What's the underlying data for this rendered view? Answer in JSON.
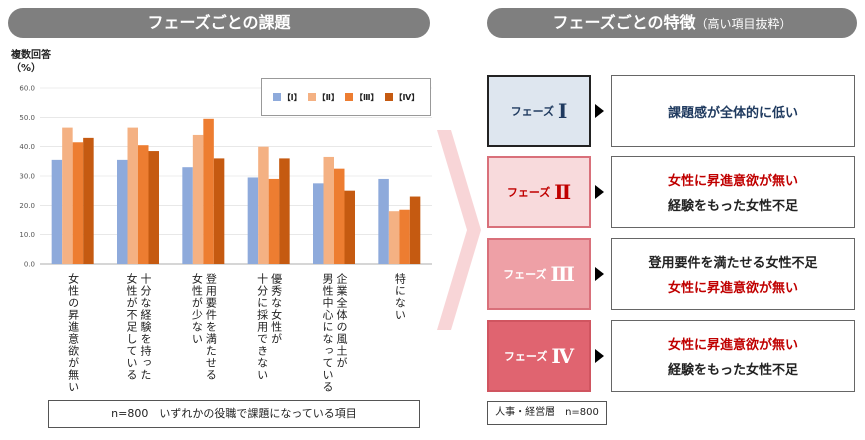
{
  "left_header": "フェーズごとの課題",
  "right_header": {
    "main": "フェーズごとの特徴",
    "sub": "（高い項目抜粋）"
  },
  "chart_data": {
    "type": "bar",
    "ylabel_line1": "複数回答",
    "ylabel_line2": "（%）",
    "ylim": [
      0,
      60
    ],
    "y_ticks": [
      "0.0",
      "10.0",
      "20.0",
      "30.0",
      "40.0",
      "50.0",
      "60.0"
    ],
    "grid": true,
    "legend_position": "top-right",
    "categories": [
      [
        "女性の昇進意欲が無い"
      ],
      [
        "十分な経験を持った",
        "女性が不足している"
      ],
      [
        "登用要件を満たせる",
        "女性が少ない"
      ],
      [
        "優秀な女性が",
        "十分に採用できない"
      ],
      [
        "企業全体の風土が",
        "男性中心になっている"
      ],
      [
        "特にない"
      ]
    ],
    "series": [
      {
        "name": "【Ⅰ】",
        "color": "#8eaadb",
        "values": [
          35.5,
          35.5,
          33.0,
          29.5,
          27.5,
          29.0
        ]
      },
      {
        "name": "【Ⅱ】",
        "color": "#f4b183",
        "values": [
          46.5,
          46.5,
          44.0,
          40.0,
          36.5,
          18.0
        ]
      },
      {
        "name": "【Ⅲ】",
        "color": "#ed7d31",
        "values": [
          41.5,
          40.5,
          49.5,
          29.0,
          32.5,
          18.5
        ]
      },
      {
        "name": "【Ⅳ】",
        "color": "#c55a11",
        "values": [
          43.0,
          38.5,
          36.0,
          36.0,
          25.0,
          23.0
        ]
      }
    ]
  },
  "left_note": "n=800　いずれかの役職で課題になっている項目",
  "phases": [
    {
      "label": "フェーズ",
      "roman": "Ⅰ",
      "bg": "#dee6ef",
      "border": "#222222",
      "text_color": "#1f3a5f",
      "lines": [
        {
          "text": "課題感が全体的に低い",
          "color": "navy"
        }
      ]
    },
    {
      "label": "フェーズ",
      "roman": "Ⅱ",
      "bg": "#f8dadc",
      "border": "#d9707a",
      "text_color": "#c00000",
      "lines": [
        {
          "text": "女性に昇進意欲が無い",
          "color": "red"
        },
        {
          "text": "経験をもった女性不足",
          "color": "black"
        }
      ]
    },
    {
      "label": "フェーズ",
      "roman": "Ⅲ",
      "bg": "#eea0a6",
      "border": "#d9707a",
      "text_color": "#ffffff",
      "lines": [
        {
          "text": "登用要件を満たせる女性不足",
          "color": "black"
        },
        {
          "text": "女性に昇進意欲が無い",
          "color": "red"
        }
      ]
    },
    {
      "label": "フェーズ",
      "roman": "Ⅳ",
      "bg": "#e06470",
      "border": "#d05560",
      "text_color": "#ffffff",
      "lines": [
        {
          "text": "女性に昇進意欲が無い",
          "color": "red"
        },
        {
          "text": "経験をもった女性不足",
          "color": "black"
        }
      ]
    }
  ],
  "right_note": "人事・経営層　n=800"
}
